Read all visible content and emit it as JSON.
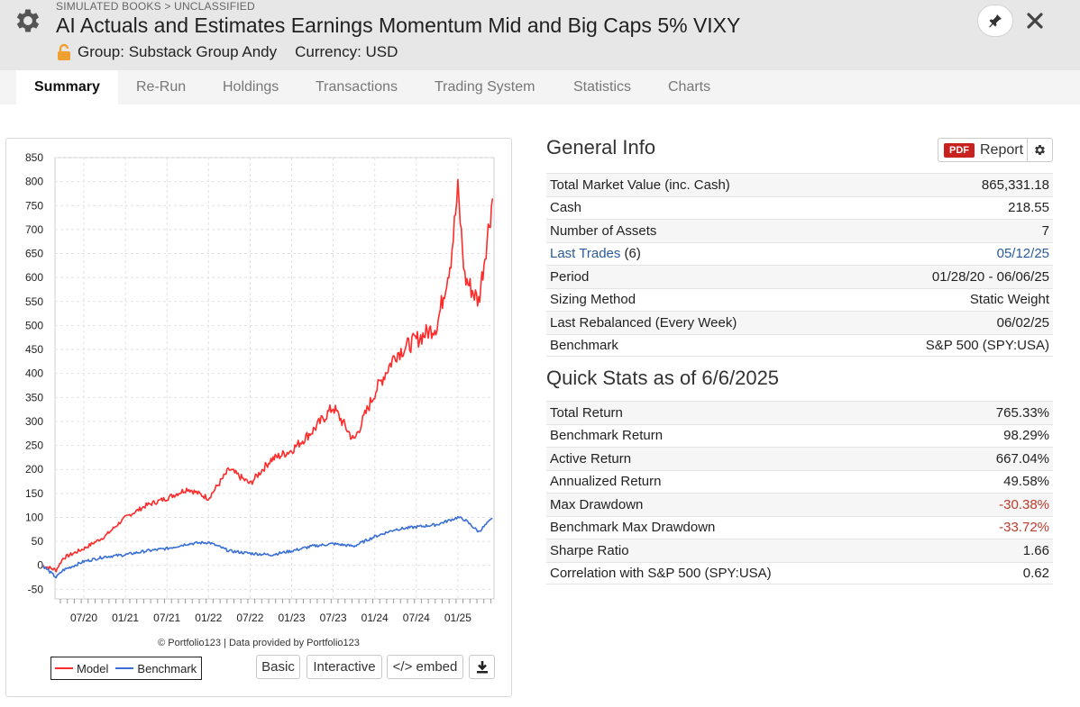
{
  "header": {
    "breadcrumb": "SIMULATED BOOKS > UNCLASSIFIED",
    "title": "AI Actuals and Estimates Earnings Momentum Mid and Big Caps 5% VIXY",
    "group": "Group: Substack Group Andy",
    "currency": "Currency: USD",
    "icons": [
      "gear-icon",
      "lock-icon",
      "pin-icon",
      "close-icon"
    ]
  },
  "tabs": [
    "Summary",
    "Re-Run",
    "Holdings",
    "Transactions",
    "Trading System",
    "Statistics",
    "Charts"
  ],
  "active_tab": "Summary",
  "chart_panel": {
    "credit": "© Portfolio123 | Data provided by Portfolio123",
    "legend": [
      "Model",
      "Benchmark"
    ],
    "buttons": {
      "basic": "Basic",
      "interactive": "Interactive",
      "embed": "</> embed"
    }
  },
  "chart_data": {
    "type": "line",
    "x_tick_labels": [
      "07/20",
      "01/21",
      "07/21",
      "01/22",
      "07/22",
      "01/23",
      "07/23",
      "01/24",
      "07/24",
      "01/25"
    ],
    "y_tick_labels": [
      "850",
      "800",
      "750",
      "700",
      "650",
      "600",
      "550",
      "500",
      "450",
      "400",
      "350",
      "300",
      "250",
      "200",
      "150",
      "100",
      "50",
      "0",
      "-50"
    ],
    "ylim": [
      -70,
      850
    ],
    "x_dates": [
      "01/20",
      "03/20",
      "04/20",
      "07/20",
      "10/20",
      "01/21",
      "04/21",
      "07/21",
      "10/21",
      "01/22",
      "04/22",
      "07/22",
      "10/22",
      "01/23",
      "04/23",
      "07/23",
      "10/23",
      "01/24",
      "04/24",
      "07/24",
      "10/24",
      "12/24",
      "01/25",
      "02/25",
      "04/25",
      "06/25"
    ],
    "series": [
      {
        "name": "Model",
        "color": "#ff2a2a",
        "values": [
          0,
          -10,
          15,
          35,
          60,
          100,
          125,
          140,
          160,
          140,
          200,
          170,
          220,
          240,
          280,
          330,
          260,
          360,
          440,
          470,
          500,
          640,
          780,
          600,
          550,
          765
        ]
      },
      {
        "name": "Benchmark",
        "color": "#3a6fd6",
        "values": [
          0,
          -25,
          -10,
          8,
          18,
          22,
          30,
          35,
          45,
          48,
          30,
          25,
          22,
          30,
          40,
          45,
          40,
          60,
          75,
          80,
          85,
          95,
          100,
          95,
          70,
          98
        ]
      }
    ]
  },
  "general_info": {
    "title": "General Info",
    "report_button": {
      "badge": "PDF",
      "label": "Report"
    },
    "rows": [
      {
        "label": "Total Market Value (inc. Cash)",
        "value": "865,331.18"
      },
      {
        "label": "Cash",
        "value": "218.55"
      },
      {
        "label": "Number of Assets",
        "value": "7"
      },
      {
        "label": "Last Trades",
        "suffix": " (6)",
        "value": "05/12/25"
      },
      {
        "label": "Period",
        "value": "01/28/20 - 06/06/25"
      },
      {
        "label": "Sizing Method",
        "value": "Static Weight"
      },
      {
        "label": "Last Rebalanced (Every Week)",
        "value": "06/02/25"
      },
      {
        "label": "Benchmark",
        "value": "S&P 500 (SPY:USA)"
      }
    ]
  },
  "quick_stats": {
    "title": "Quick Stats as of 6/6/2025",
    "rows": [
      {
        "label": "Total Return",
        "value": "765.33%"
      },
      {
        "label": "Benchmark Return",
        "value": "98.29%"
      },
      {
        "label": "Active Return",
        "value": "667.04%"
      },
      {
        "label": "Annualized Return",
        "value": "49.58%"
      },
      {
        "label": "Max Drawdown",
        "value": "-30.38%"
      },
      {
        "label": "Benchmark Max Drawdown",
        "value": "-33.72%"
      },
      {
        "label": "Sharpe Ratio",
        "value": "1.66"
      },
      {
        "label": "Correlation with S&P 500 (SPY:USA)",
        "value": "0.62"
      }
    ]
  }
}
